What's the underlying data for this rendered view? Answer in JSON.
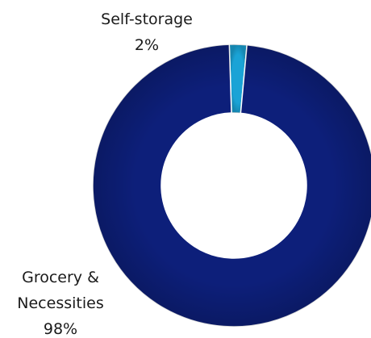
{
  "chart_data": {
    "type": "pie",
    "variant": "donut",
    "slices": [
      {
        "label": "Self-storage",
        "value_label": "2%",
        "value": 2,
        "color": "#1aa3d6"
      },
      {
        "label_lines": [
          "Grocery &",
          "Necessities"
        ],
        "value_label": "98%",
        "value": 98,
        "color": "#0d1f7a"
      }
    ],
    "legend": "none"
  }
}
